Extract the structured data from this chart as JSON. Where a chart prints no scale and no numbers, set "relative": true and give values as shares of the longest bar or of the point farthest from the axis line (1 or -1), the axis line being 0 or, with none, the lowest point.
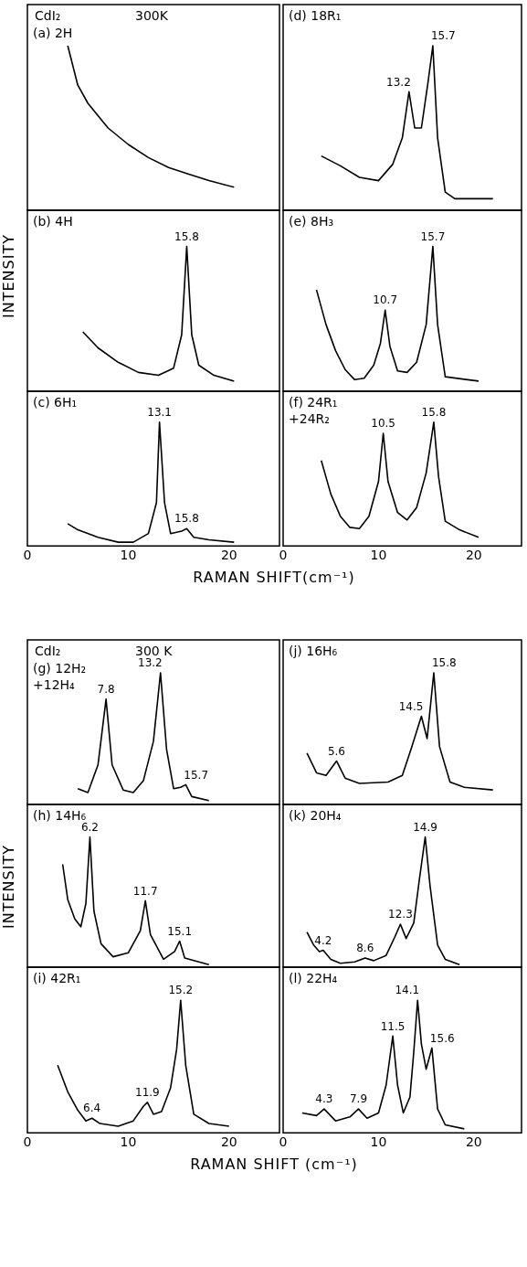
{
  "chart_data": [
    {
      "type": "line",
      "title": "(a) 2H",
      "relative": true,
      "color": "#000000",
      "marker": "none",
      "xlim": [
        0,
        25
      ],
      "xticks": [
        0,
        10,
        20
      ],
      "tick_labels": false,
      "annotations": [
        "CdI₂",
        "300K"
      ],
      "x": [
        4,
        5,
        6,
        8,
        10,
        12,
        14,
        16,
        18,
        20.5
      ],
      "values": [
        1,
        0.76,
        0.65,
        0.5,
        0.4,
        0.32,
        0.26,
        0.22,
        0.18,
        0.14
      ]
    },
    {
      "type": "line",
      "title": "(b) 4H",
      "ylabel": "INTENSITY",
      "relative": true,
      "color": "#000000",
      "marker": "none",
      "xlim": [
        0,
        25
      ],
      "xticks": [
        0,
        10,
        20
      ],
      "tick_labels": false,
      "annotations": [
        {
          "text": "15.8",
          "x": 15.8,
          "y": 1
        }
      ],
      "x": [
        5.5,
        7,
        9,
        11,
        13,
        14.5,
        15.3,
        15.8,
        16.3,
        17,
        18.5,
        20.5
      ],
      "values": [
        0.41,
        0.3,
        0.2,
        0.13,
        0.11,
        0.16,
        0.39,
        1,
        0.39,
        0.18,
        0.11,
        0.07
      ]
    },
    {
      "type": "line",
      "title": "(c) 6H₁",
      "xlabel": "RAMAN SHIFT(cm⁻¹)",
      "relative": true,
      "color": "#000000",
      "marker": "none",
      "xlim": [
        0,
        25
      ],
      "xticks": [
        0,
        10,
        20
      ],
      "tick_labels": "x",
      "annotations": [
        {
          "text": "13.1",
          "x": 13.1,
          "y": 1
        },
        {
          "text": "15.8",
          "x": 15.8,
          "y": 0.14
        }
      ],
      "x": [
        4,
        5,
        7,
        9,
        10.5,
        12,
        12.8,
        13.1,
        13.6,
        14.2,
        15.3,
        15.8,
        16.5,
        18,
        20.5
      ],
      "values": [
        0.18,
        0.13,
        0.07,
        0.03,
        0.03,
        0.1,
        0.35,
        1,
        0.35,
        0.1,
        0.12,
        0.14,
        0.07,
        0.05,
        0.03
      ]
    },
    {
      "type": "line",
      "title": "(d) 18R₁",
      "relative": true,
      "color": "#000000",
      "marker": "none",
      "xlim": [
        0,
        25
      ],
      "xticks": [
        0,
        10,
        20
      ],
      "tick_labels": false,
      "annotations": [
        {
          "text": "13.2",
          "x": 13.2,
          "y": 0.72
        },
        {
          "text": "15.7",
          "x": 15.7,
          "y": 1
        }
      ],
      "x": [
        4,
        6,
        8,
        10,
        11.5,
        12.5,
        13.2,
        13.8,
        14.5,
        15.2,
        15.7,
        16.2,
        17,
        18,
        22
      ],
      "values": [
        0.33,
        0.27,
        0.2,
        0.18,
        0.28,
        0.44,
        0.72,
        0.5,
        0.5,
        0.78,
        1,
        0.44,
        0.11,
        0.07,
        0.07
      ]
    },
    {
      "type": "line",
      "title": "(e) 8H₃",
      "relative": true,
      "color": "#000000",
      "marker": "none",
      "xlim": [
        0,
        25
      ],
      "xticks": [
        0,
        10,
        20
      ],
      "tick_labels": false,
      "annotations": [
        {
          "text": "10.7",
          "x": 10.7,
          "y": 0.56
        },
        {
          "text": "15.7",
          "x": 15.7,
          "y": 1
        }
      ],
      "x": [
        3.5,
        4.5,
        5.5,
        6.5,
        7.5,
        8.5,
        9.5,
        10.2,
        10.7,
        11.2,
        12,
        13,
        14,
        15,
        15.7,
        16.2,
        17,
        20.5
      ],
      "values": [
        0.7,
        0.46,
        0.28,
        0.15,
        0.08,
        0.09,
        0.18,
        0.33,
        0.56,
        0.31,
        0.14,
        0.13,
        0.2,
        0.46,
        1,
        0.46,
        0.1,
        0.07
      ]
    },
    {
      "type": "line",
      "title": "(f) 24R₁\n+24R₂",
      "relative": true,
      "color": "#000000",
      "marker": "none",
      "xlim": [
        0,
        25
      ],
      "xticks": [
        0,
        10,
        20
      ],
      "tick_labels": "x",
      "annotations": [
        {
          "text": "10.5",
          "x": 10.5,
          "y": 0.91
        },
        {
          "text": "15.8",
          "x": 15.8,
          "y": 1
        }
      ],
      "x": [
        4,
        5,
        6,
        7,
        8,
        9,
        10,
        10.5,
        11,
        12,
        13,
        14,
        15,
        15.8,
        16.3,
        17,
        18.5,
        20.5
      ],
      "values": [
        0.69,
        0.42,
        0.24,
        0.15,
        0.14,
        0.24,
        0.52,
        0.91,
        0.52,
        0.27,
        0.21,
        0.31,
        0.59,
        1,
        0.56,
        0.2,
        0.13,
        0.07
      ]
    },
    {
      "type": "line",
      "title": "(g) 12H₂\n+12H₄",
      "relative": true,
      "color": "#000000",
      "marker": "none",
      "xlim": [
        0,
        25
      ],
      "xticks": [
        0,
        10,
        20
      ],
      "tick_labels": false,
      "annotations": [
        "CdI₂",
        "300 K",
        {
          "text": "7.8",
          "x": 7.8,
          "y": 0.8
        },
        {
          "text": "13.2",
          "x": 13.2,
          "y": 1
        },
        {
          "text": "15.7",
          "x": 15.7,
          "y": 0.15
        }
      ],
      "x": [
        5,
        6,
        7,
        7.8,
        8.4,
        9.5,
        10.5,
        11.5,
        12.5,
        13.2,
        13.8,
        14.5,
        15.2,
        15.7,
        16.3,
        18
      ],
      "values": [
        0.12,
        0.09,
        0.3,
        0.8,
        0.3,
        0.11,
        0.09,
        0.18,
        0.48,
        1,
        0.42,
        0.12,
        0.13,
        0.15,
        0.06,
        0.03
      ]
    },
    {
      "type": "line",
      "title": "(h) 14H₆",
      "ylabel": "INTENSITY",
      "relative": true,
      "color": "#000000",
      "marker": "none",
      "xlim": [
        0,
        25
      ],
      "xticks": [
        0,
        10,
        20
      ],
      "tick_labels": false,
      "annotations": [
        {
          "text": "6.2",
          "x": 6.2,
          "y": 1
        },
        {
          "text": "11.7",
          "x": 11.7,
          "y": 0.51
        },
        {
          "text": "15.1",
          "x": 15.1,
          "y": 0.2
        }
      ],
      "x": [
        3.5,
        4,
        4.7,
        5.3,
        5.8,
        6.2,
        6.6,
        7.3,
        8.5,
        10,
        11.2,
        11.7,
        12.2,
        13.5,
        14.6,
        15.1,
        15.6,
        18
      ],
      "values": [
        0.79,
        0.52,
        0.37,
        0.31,
        0.49,
        1,
        0.43,
        0.18,
        0.08,
        0.11,
        0.28,
        0.51,
        0.25,
        0.06,
        0.12,
        0.2,
        0.07,
        0.02
      ]
    },
    {
      "type": "line",
      "title": "(i) 42R₁",
      "xlabel": "RAMAN SHIFT (cm⁻¹)",
      "relative": true,
      "color": "#000000",
      "marker": "none",
      "xlim": [
        0,
        25
      ],
      "xticks": [
        0,
        10,
        20
      ],
      "tick_labels": "x",
      "annotations": [
        {
          "text": "6.4",
          "x": 6.4,
          "y": 0.11
        },
        {
          "text": "11.9",
          "x": 11.9,
          "y": 0.23
        },
        {
          "text": "15.2",
          "x": 15.2,
          "y": 1
        }
      ],
      "x": [
        3,
        4,
        5,
        5.8,
        6.4,
        7.2,
        9,
        10.5,
        11.5,
        11.9,
        12.5,
        13.3,
        14.2,
        14.8,
        15.2,
        15.7,
        16.5,
        18,
        20
      ],
      "values": [
        0.51,
        0.31,
        0.17,
        0.09,
        0.11,
        0.07,
        0.05,
        0.09,
        0.2,
        0.23,
        0.14,
        0.16,
        0.34,
        0.63,
        1,
        0.51,
        0.14,
        0.07,
        0.05
      ]
    },
    {
      "type": "line",
      "title": "(j) 16H₆",
      "relative": true,
      "color": "#000000",
      "marker": "none",
      "xlim": [
        0,
        25
      ],
      "xticks": [
        0,
        10,
        20
      ],
      "tick_labels": false,
      "annotations": [
        {
          "text": "5.6",
          "x": 5.6,
          "y": 0.33
        },
        {
          "text": "14.5",
          "x": 14.5,
          "y": 0.67
        },
        {
          "text": "15.8",
          "x": 15.8,
          "y": 1
        }
      ],
      "x": [
        2.5,
        3.5,
        4.5,
        5.6,
        6.5,
        8,
        11,
        12.5,
        13.5,
        14.5,
        15.1,
        15.8,
        16.4,
        17.5,
        19,
        22
      ],
      "values": [
        0.39,
        0.24,
        0.22,
        0.33,
        0.2,
        0.16,
        0.17,
        0.22,
        0.44,
        0.67,
        0.5,
        1,
        0.44,
        0.17,
        0.13,
        0.11
      ]
    },
    {
      "type": "line",
      "title": "(k) 20H₄",
      "relative": true,
      "color": "#000000",
      "marker": "none",
      "xlim": [
        0,
        25
      ],
      "xticks": [
        0,
        10,
        20
      ],
      "tick_labels": false,
      "annotations": [
        {
          "text": "4.2",
          "x": 4.2,
          "y": 0.13
        },
        {
          "text": "8.6",
          "x": 8.6,
          "y": 0.07
        },
        {
          "text": "12.3",
          "x": 12.3,
          "y": 0.33
        },
        {
          "text": "14.9",
          "x": 14.9,
          "y": 1
        }
      ],
      "x": [
        2.5,
        3.2,
        3.8,
        4.2,
        5,
        6,
        7.5,
        8.6,
        9.5,
        10.8,
        11.7,
        12.3,
        12.9,
        13.7,
        14.3,
        14.9,
        15.4,
        16.2,
        17,
        18.5
      ],
      "values": [
        0.27,
        0.17,
        0.12,
        0.13,
        0.06,
        0.03,
        0.04,
        0.07,
        0.05,
        0.09,
        0.23,
        0.33,
        0.22,
        0.34,
        0.68,
        1,
        0.63,
        0.17,
        0.06,
        0.02
      ]
    },
    {
      "type": "line",
      "title": "(l) 22H₄",
      "relative": true,
      "color": "#000000",
      "marker": "none",
      "xlim": [
        0,
        25
      ],
      "xticks": [
        0,
        10,
        20
      ],
      "tick_labels": "x",
      "annotations": [
        {
          "text": "4.3",
          "x": 4.3,
          "y": 0.18
        },
        {
          "text": "7.9",
          "x": 7.9,
          "y": 0.18
        },
        {
          "text": "11.5",
          "x": 11.5,
          "y": 0.73
        },
        {
          "text": "14.1",
          "x": 14.1,
          "y": 1
        },
        {
          "text": "15.6",
          "x": 15.6,
          "y": 0.64
        }
      ],
      "x": [
        2,
        3.5,
        4.3,
        5.5,
        7,
        7.9,
        8.8,
        10,
        10.8,
        11.5,
        12,
        12.6,
        13.3,
        13.7,
        14.1,
        14.5,
        15,
        15.6,
        16.2,
        17,
        19
      ],
      "values": [
        0.15,
        0.13,
        0.18,
        0.09,
        0.12,
        0.18,
        0.11,
        0.15,
        0.36,
        0.73,
        0.36,
        0.15,
        0.27,
        0.61,
        1,
        0.67,
        0.48,
        0.64,
        0.18,
        0.06,
        0.03
      ]
    }
  ]
}
